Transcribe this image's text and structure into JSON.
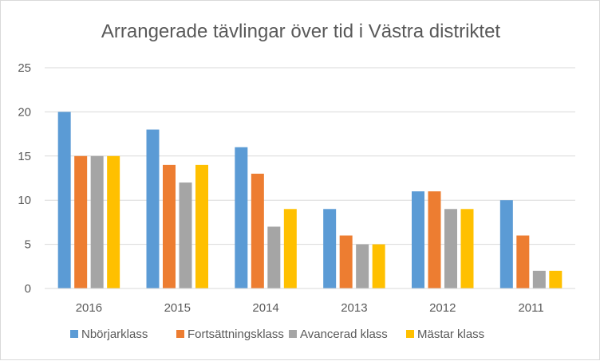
{
  "chart_data": {
    "type": "bar",
    "title": "Arrangerade tävlingar över tid i Västra distriktet",
    "xlabel": "",
    "ylabel": "",
    "categories": [
      "2016",
      "2015",
      "2014",
      "2013",
      "2012",
      "2011"
    ],
    "series": [
      {
        "name": "Nbörjarklass",
        "color": "#5B9BD5",
        "values": [
          20,
          18,
          16,
          9,
          11,
          10
        ]
      },
      {
        "name": "Fortsättningsklass",
        "color": "#ED7D31",
        "values": [
          15,
          14,
          13,
          6,
          11,
          6
        ]
      },
      {
        "name": "Avancerad klass",
        "color": "#A5A5A5",
        "values": [
          15,
          12,
          7,
          5,
          9,
          2
        ]
      },
      {
        "name": "Mästar klass",
        "color": "#FFC000",
        "values": [
          15,
          14,
          9,
          5,
          9,
          2
        ]
      }
    ],
    "ylim": [
      0,
      25
    ],
    "yticks": [
      "0",
      "5",
      "10",
      "15",
      "20",
      "25"
    ],
    "grid": true,
    "legend": "bottom"
  }
}
